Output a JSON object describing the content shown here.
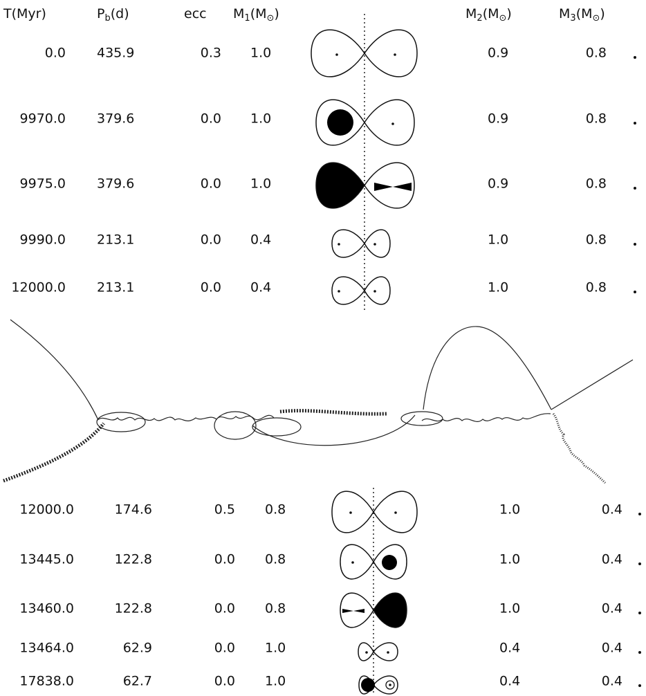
{
  "header": {
    "t": [
      {
        "text": "T(Myr)"
      }
    ],
    "pb": [
      {
        "text": "P"
      },
      {
        "text": "b",
        "sub": true
      },
      {
        "text": "(d)"
      }
    ],
    "ecc": [
      {
        "text": "ecc"
      }
    ],
    "m1": [
      {
        "text": "M"
      },
      {
        "text": "1",
        "sub": true
      },
      {
        "text": "(M"
      },
      {
        "text": "⊙",
        "sub": true
      },
      {
        "text": ")"
      }
    ],
    "m2": [
      {
        "text": "M"
      },
      {
        "text": "2",
        "sub": true
      },
      {
        "text": "(M"
      },
      {
        "text": "⊙",
        "sub": true
      },
      {
        "text": ")"
      }
    ],
    "m3": [
      {
        "text": "M"
      },
      {
        "text": "3",
        "sub": true
      },
      {
        "text": "(M"
      },
      {
        "text": "⊙",
        "sub": true
      },
      {
        "text": ")"
      }
    ]
  },
  "top_table": {
    "rows": [
      [
        "0.0",
        "435.9",
        "0.3",
        "1.0",
        "0.9",
        "0.8"
      ],
      [
        "9970.0",
        "379.6",
        "0.0",
        "1.0",
        "0.9",
        "0.8"
      ],
      [
        "9975.0",
        "379.6",
        "0.0",
        "1.0",
        "0.9",
        "0.8"
      ],
      [
        "9990.0",
        "213.1",
        "0.0",
        "0.4",
        "1.0",
        "0.8"
      ],
      [
        "12000.0",
        "213.1",
        "0.0",
        "0.4",
        "1.0",
        "0.8"
      ]
    ]
  },
  "bottom_table": {
    "rows": [
      [
        "12000.0",
        "174.6",
        "0.5",
        "0.8",
        "1.0",
        "0.4"
      ],
      [
        "13445.0",
        "122.8",
        "0.0",
        "0.8",
        "1.0",
        "0.4"
      ],
      [
        "13460.0",
        "122.8",
        "0.0",
        "0.8",
        "1.0",
        "0.4"
      ],
      [
        "13464.0",
        "62.9",
        "0.0",
        "1.0",
        "0.4",
        "0.4"
      ],
      [
        "17838.0",
        "62.7",
        "0.0",
        "1.0",
        "0.4",
        "0.4"
      ]
    ]
  }
}
